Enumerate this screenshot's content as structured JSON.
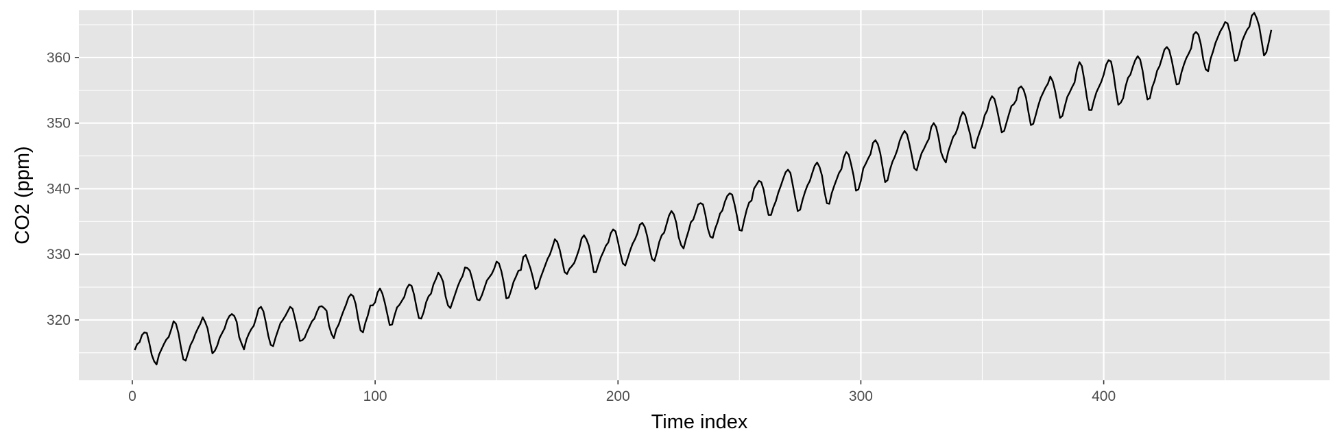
{
  "chart_data": {
    "type": "line",
    "xlabel": "Time index",
    "ylabel": "CO2 (ppm)",
    "xlim": [
      -22,
      493
    ],
    "ylim": [
      310.8,
      367.2
    ],
    "x_ticks": [
      0,
      100,
      200,
      300,
      400
    ],
    "x_minor_ticks": [
      50,
      150,
      250,
      350,
      450
    ],
    "y_ticks": [
      320,
      330,
      340,
      350,
      360
    ],
    "y_minor_ticks": [
      315,
      325,
      335,
      345,
      355,
      365
    ],
    "grid": true,
    "legend": "none",
    "colors": {
      "panel": "#e5e5e5",
      "grid": "#ffffff",
      "line": "#000000",
      "tick_text": "#4d4d4d"
    },
    "series": [
      {
        "x_start": 1,
        "values": [
          315.4,
          316.3,
          316.6,
          317.7,
          318.1,
          318.0,
          316.5,
          314.7,
          313.7,
          313.2,
          314.7,
          315.5,
          316.3,
          317.0,
          317.4,
          318.5,
          319.8,
          319.4,
          318.0,
          315.9,
          314.0,
          313.8,
          315.0,
          316.2,
          316.9,
          317.9,
          318.7,
          319.4,
          320.4,
          319.7,
          318.7,
          316.7,
          314.9,
          315.3,
          316.1,
          317.3,
          318.0,
          318.7,
          319.9,
          320.6,
          320.9,
          320.6,
          319.7,
          317.4,
          316.4,
          315.5,
          317.0,
          317.9,
          318.6,
          319.1,
          320.3,
          321.7,
          322.0,
          321.3,
          319.6,
          317.6,
          316.2,
          316.0,
          317.3,
          318.4,
          319.5,
          320.0,
          320.6,
          321.3,
          322.0,
          321.7,
          320.2,
          318.6,
          316.8,
          316.9,
          317.3,
          318.2,
          319.0,
          319.8,
          320.2,
          321.2,
          322.0,
          322.1,
          321.8,
          321.4,
          319.1,
          317.9,
          317.2,
          318.6,
          319.3,
          320.4,
          321.4,
          322.3,
          323.4,
          323.9,
          323.6,
          322.4,
          320.2,
          318.4,
          318.1,
          319.6,
          320.7,
          322.2,
          322.2,
          322.7,
          324.2,
          324.8,
          324.0,
          322.6,
          320.9,
          319.2,
          319.3,
          320.7,
          321.9,
          322.3,
          322.9,
          323.5,
          324.8,
          325.4,
          325.2,
          323.9,
          322.0,
          320.3,
          320.2,
          321.2,
          322.7,
          323.6,
          324.0,
          325.4,
          326.2,
          327.2,
          326.7,
          325.8,
          323.6,
          322.2,
          321.8,
          322.9,
          324.0,
          325.1,
          326.0,
          326.7,
          328.0,
          327.9,
          327.5,
          326.2,
          324.6,
          323.1,
          323.0,
          323.8,
          324.9,
          326.0,
          326.5,
          327.0,
          327.8,
          328.9,
          328.6,
          327.4,
          325.6,
          323.3,
          323.4,
          324.5,
          325.8,
          326.6,
          327.5,
          327.6,
          329.6,
          329.9,
          328.9,
          327.8,
          326.4,
          324.7,
          325.0,
          326.3,
          327.3,
          328.3,
          329.3,
          330.0,
          331.1,
          332.3,
          331.9,
          330.7,
          329.0,
          327.3,
          327.0,
          327.8,
          328.2,
          328.7,
          329.7,
          330.8,
          332.4,
          332.9,
          332.3,
          331.3,
          329.5,
          327.3,
          327.3,
          328.5,
          329.6,
          330.4,
          331.3,
          331.8,
          333.2,
          333.8,
          333.5,
          331.9,
          330.1,
          328.6,
          328.3,
          329.4,
          330.6,
          331.6,
          332.3,
          333.2,
          334.5,
          334.8,
          334.2,
          332.8,
          330.9,
          329.3,
          329.0,
          330.3,
          331.9,
          332.9,
          333.3,
          334.6,
          335.9,
          336.6,
          336.1,
          334.8,
          332.6,
          331.4,
          330.9,
          332.3,
          333.5,
          334.9,
          335.3,
          336.4,
          337.6,
          337.8,
          337.6,
          336.0,
          333.9,
          332.7,
          332.5,
          333.9,
          334.9,
          336.2,
          336.7,
          338.0,
          338.9,
          339.3,
          339.1,
          337.6,
          335.8,
          333.7,
          333.6,
          335.3,
          336.8,
          337.9,
          338.2,
          340.0,
          340.6,
          341.2,
          341.0,
          339.8,
          337.7,
          336.0,
          336.0,
          337.2,
          338.1,
          339.4,
          340.4,
          341.5,
          342.5,
          342.9,
          342.4,
          340.5,
          338.5,
          336.6,
          336.8,
          338.3,
          339.5,
          340.5,
          341.2,
          342.4,
          343.5,
          344.0,
          343.3,
          342.0,
          339.6,
          337.8,
          337.7,
          339.3,
          340.4,
          341.4,
          342.4,
          343.0,
          344.8,
          345.6,
          345.2,
          343.7,
          342.0,
          339.7,
          339.9,
          341.2,
          343.1,
          343.8,
          344.6,
          345.3,
          347.0,
          347.4,
          346.8,
          345.4,
          343.2,
          341.0,
          341.3,
          342.9,
          344.1,
          344.9,
          345.9,
          347.3,
          348.2,
          348.8,
          348.3,
          346.8,
          345.0,
          343.1,
          342.8,
          344.2,
          345.4,
          346.1,
          346.9,
          347.6,
          349.4,
          350.0,
          349.4,
          347.8,
          345.6,
          344.6,
          344.0,
          345.7,
          346.8,
          347.9,
          348.4,
          349.4,
          350.9,
          351.7,
          351.2,
          349.7,
          348.3,
          346.3,
          346.2,
          347.6,
          348.7,
          349.7,
          351.2,
          351.9,
          353.4,
          354.1,
          353.7,
          352.2,
          350.4,
          348.6,
          348.8,
          350.1,
          351.4,
          352.6,
          352.9,
          353.5,
          355.3,
          355.6,
          355.1,
          353.9,
          351.7,
          349.7,
          349.9,
          351.2,
          352.6,
          353.8,
          354.6,
          355.4,
          356.0,
          357.1,
          356.4,
          354.9,
          352.9,
          350.8,
          351.1,
          352.6,
          354.0,
          354.7,
          355.5,
          356.2,
          358.2,
          359.3,
          358.7,
          356.6,
          354.1,
          352.0,
          352.0,
          353.5,
          354.7,
          355.5,
          356.3,
          357.4,
          358.9,
          359.6,
          359.4,
          357.6,
          355.0,
          352.8,
          353.1,
          353.8,
          355.6,
          356.9,
          357.4,
          358.6,
          359.6,
          360.2,
          359.7,
          358.0,
          355.6,
          353.6,
          353.8,
          355.5,
          356.5,
          358.0,
          358.7,
          359.9,
          361.2,
          361.6,
          361.1,
          359.6,
          357.7,
          355.9,
          356.0,
          357.7,
          358.9,
          359.9,
          360.6,
          361.4,
          363.5,
          363.9,
          363.5,
          362.0,
          359.7,
          358.2,
          357.9,
          359.8,
          360.9,
          362.2,
          363.1,
          364.0,
          364.6,
          365.4,
          365.2,
          363.8,
          361.5,
          359.5,
          359.6,
          360.9,
          362.5,
          363.4,
          364.2,
          364.7,
          366.4,
          366.8,
          366.0,
          364.8,
          362.6,
          360.3,
          360.8,
          362.4,
          364.2
        ]
      }
    ]
  }
}
